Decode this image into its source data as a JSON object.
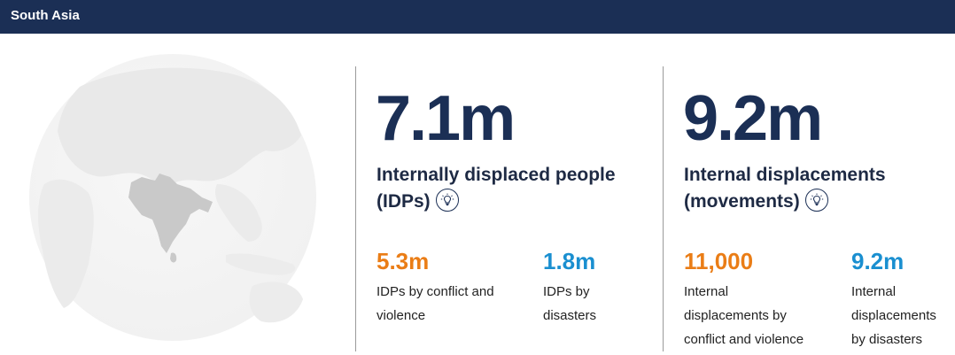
{
  "header": {
    "region": "South Asia"
  },
  "idps": {
    "total": "7.1m",
    "heading_line1": "Internally displaced people",
    "heading_line2": "(IDPs)",
    "conflict_value": "5.3m",
    "conflict_label_line1": "IDPs by conflict and",
    "conflict_label_line2": "violence",
    "disaster_value": "1.8m",
    "disaster_label_line1": "IDPs by",
    "disaster_label_line2": "disasters"
  },
  "movements": {
    "total": "9.2m",
    "heading_line1": "Internal displacements",
    "heading_line2": "(movements)",
    "conflict_value": "11,000",
    "conflict_label_line1": "Internal",
    "conflict_label_line2": "displacements by",
    "conflict_label_line3": "conflict and violence",
    "disaster_value": "9.2m",
    "disaster_label_line1": "Internal",
    "disaster_label_line2": "displacements",
    "disaster_label_line3": "by disasters"
  },
  "colors": {
    "header_bg": "#1b2f55",
    "conflict": "#ea7d16",
    "disaster": "#1a8fd0",
    "region_highlight": "#c9c9c9"
  },
  "icons": {
    "info": "lightbulb-icon"
  }
}
